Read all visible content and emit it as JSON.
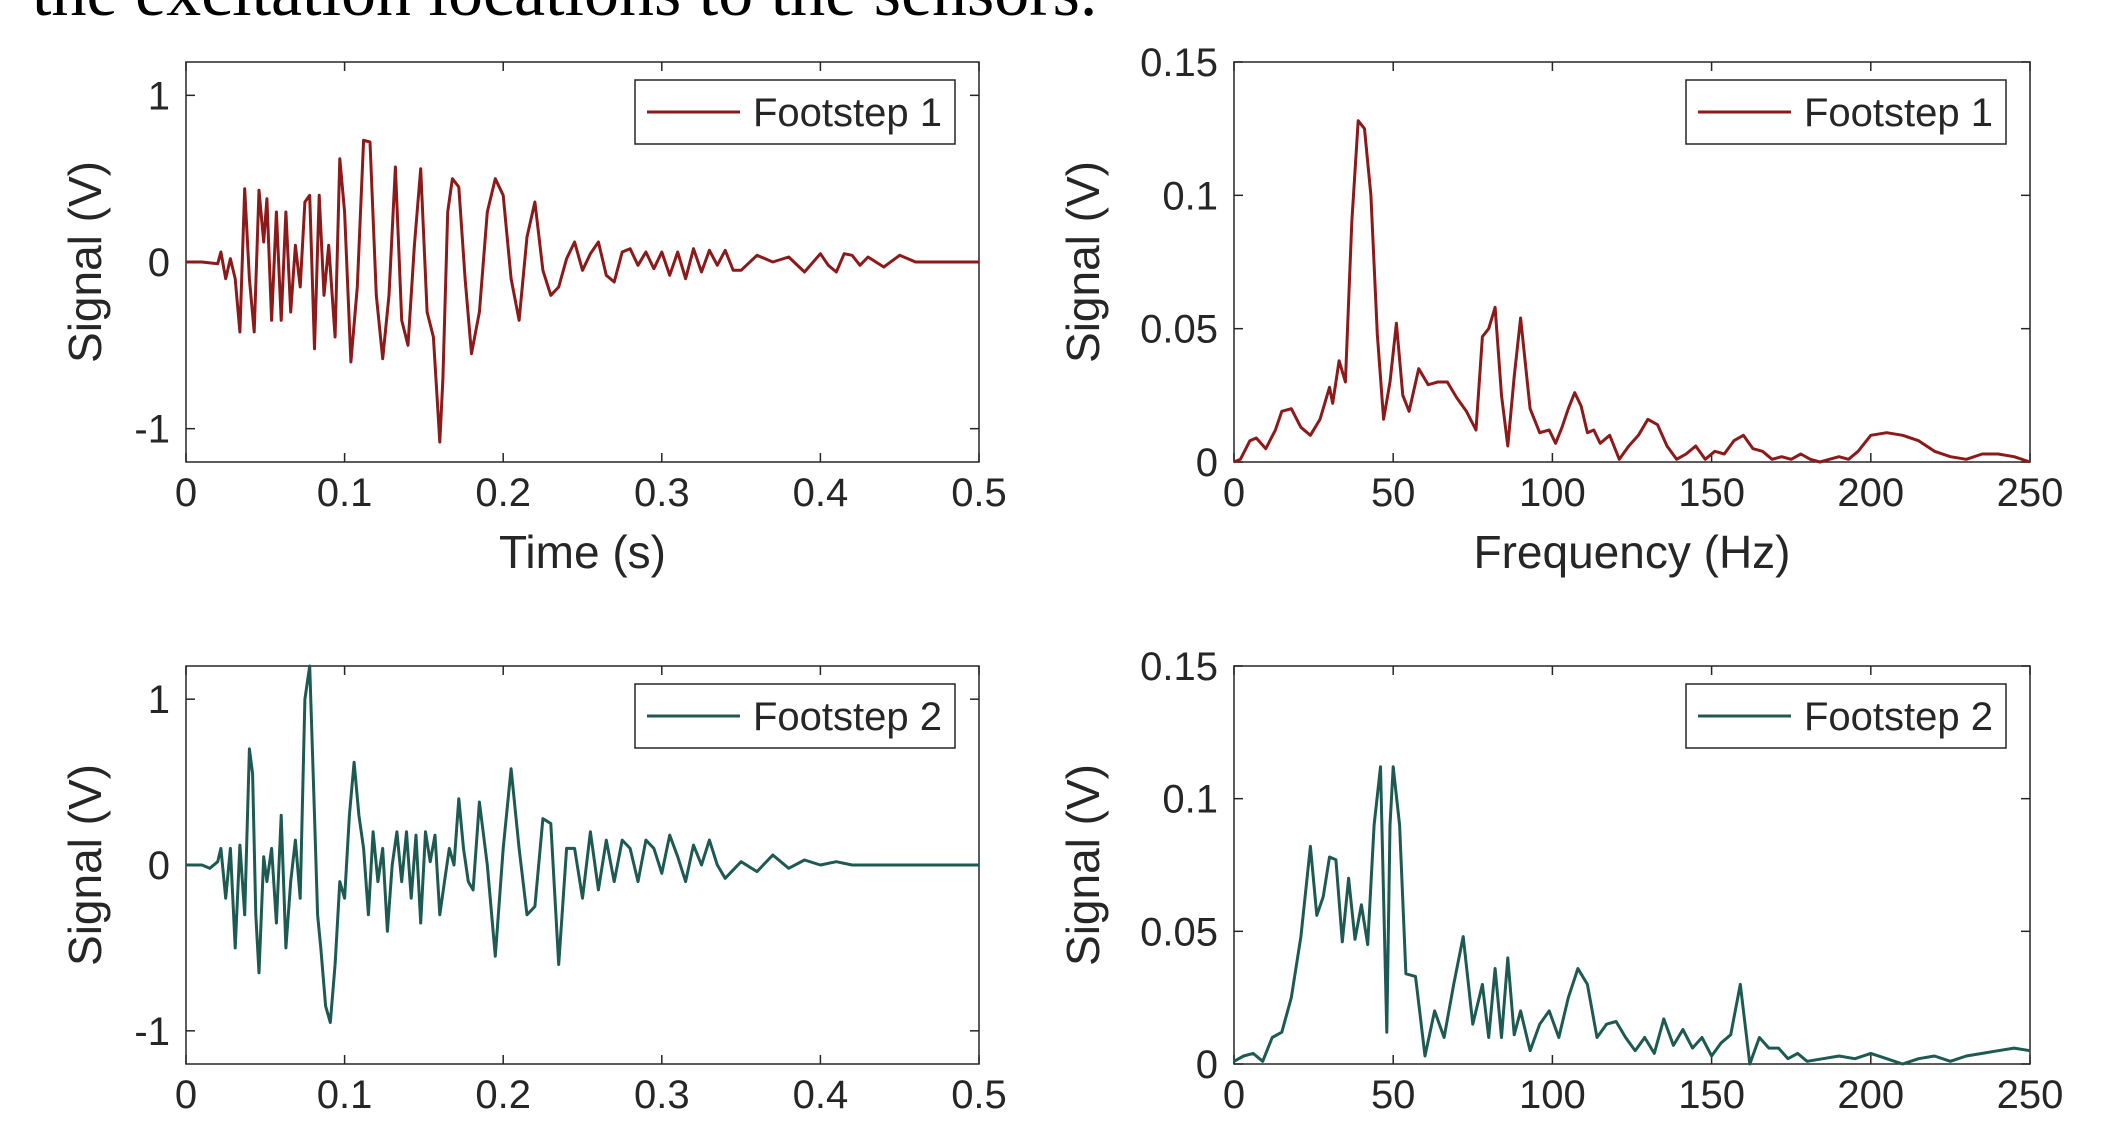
{
  "caption": "the excitation locations to the sensors.",
  "colors": {
    "footstep1": "#8c1a1a",
    "footstep2": "#1d5a52",
    "axis": "#262626"
  },
  "chart_data": [
    {
      "type": "line",
      "xlabel": "Time (s)",
      "ylabel": "Signal (V)",
      "xlim": [
        0,
        0.5
      ],
      "ylim": [
        -1.2,
        1.2
      ],
      "xticks": [
        "0",
        "0.1",
        "0.2",
        "0.3",
        "0.4",
        "0.5"
      ],
      "yticks": [
        "-1",
        "0",
        "1"
      ],
      "xtick_values": [
        0,
        0.1,
        0.2,
        0.3,
        0.4,
        0.5
      ],
      "ytick_values": [
        -1,
        0,
        1
      ],
      "legend_position": "top-right",
      "grid": false,
      "series": [
        {
          "name": "Footstep 1",
          "color": "#8c1a1a",
          "x": [
            0,
            0.01,
            0.02,
            0.022,
            0.025,
            0.028,
            0.031,
            0.034,
            0.037,
            0.04,
            0.043,
            0.046,
            0.049,
            0.051,
            0.054,
            0.057,
            0.06,
            0.063,
            0.066,
            0.069,
            0.072,
            0.075,
            0.078,
            0.081,
            0.084,
            0.087,
            0.09,
            0.094,
            0.097,
            0.1,
            0.104,
            0.108,
            0.112,
            0.116,
            0.12,
            0.124,
            0.128,
            0.132,
            0.136,
            0.14,
            0.144,
            0.148,
            0.152,
            0.156,
            0.16,
            0.162,
            0.165,
            0.168,
            0.172,
            0.176,
            0.18,
            0.185,
            0.19,
            0.195,
            0.2,
            0.205,
            0.21,
            0.215,
            0.22,
            0.225,
            0.23,
            0.235,
            0.24,
            0.245,
            0.25,
            0.255,
            0.26,
            0.265,
            0.27,
            0.275,
            0.28,
            0.285,
            0.29,
            0.295,
            0.3,
            0.305,
            0.31,
            0.315,
            0.32,
            0.325,
            0.33,
            0.335,
            0.34,
            0.345,
            0.35,
            0.36,
            0.37,
            0.38,
            0.39,
            0.4,
            0.405,
            0.41,
            0.415,
            0.42,
            0.425,
            0.43,
            0.44,
            0.45,
            0.46,
            0.47,
            0.48,
            0.5
          ],
          "y": [
            0,
            0,
            -0.01,
            0.06,
            -0.1,
            0.02,
            -0.1,
            -0.42,
            0.44,
            -0.1,
            -0.42,
            0.43,
            0.12,
            0.38,
            -0.35,
            0.3,
            -0.35,
            0.3,
            -0.3,
            0.1,
            -0.15,
            0.36,
            0.4,
            -0.52,
            0.4,
            -0.2,
            0.1,
            -0.45,
            0.62,
            0.3,
            -0.6,
            -0.15,
            0.73,
            0.72,
            -0.2,
            -0.58,
            -0.2,
            0.57,
            -0.35,
            -0.5,
            0.1,
            0.56,
            -0.3,
            -0.45,
            -1.08,
            -0.7,
            0.3,
            0.5,
            0.45,
            -0.1,
            -0.55,
            -0.3,
            0.3,
            0.5,
            0.4,
            -0.1,
            -0.35,
            0.15,
            0.36,
            -0.05,
            -0.2,
            -0.15,
            0.02,
            0.12,
            -0.05,
            0.05,
            0.12,
            -0.08,
            -0.12,
            0.06,
            0.08,
            -0.02,
            0.06,
            -0.04,
            0.06,
            -0.08,
            0.06,
            -0.1,
            0.08,
            -0.06,
            0.07,
            -0.02,
            0.07,
            -0.05,
            -0.05,
            0.04,
            0,
            0.03,
            -0.06,
            0.05,
            -0.02,
            -0.06,
            0.05,
            0.04,
            -0.02,
            0.03,
            -0.03,
            0.04,
            0,
            0,
            0,
            0
          ]
        }
      ]
    },
    {
      "type": "line",
      "xlabel": "Frequency (Hz)",
      "ylabel": "Signal (V)",
      "xlim": [
        0,
        250
      ],
      "ylim": [
        0,
        0.15
      ],
      "xticks": [
        "0",
        "50",
        "100",
        "150",
        "200",
        "250"
      ],
      "yticks": [
        "0",
        "0.05",
        "0.1",
        "0.15"
      ],
      "xtick_values": [
        0,
        50,
        100,
        150,
        200,
        250
      ],
      "ytick_values": [
        0,
        0.05,
        0.1,
        0.15
      ],
      "legend_position": "top-right",
      "grid": false,
      "series": [
        {
          "name": "Footstep 1",
          "color": "#8c1a1a",
          "x": [
            0,
            2,
            5,
            7,
            10,
            13,
            15,
            18,
            21,
            24,
            27,
            30,
            31,
            33,
            35,
            37,
            39,
            41,
            43,
            45,
            47,
            49,
            51,
            53,
            55,
            58,
            61,
            64,
            67,
            70,
            73,
            76,
            78,
            80,
            82,
            84,
            86,
            88,
            90,
            93,
            96,
            99,
            101,
            103,
            105,
            107,
            109,
            111,
            113,
            115,
            118,
            121,
            124,
            127,
            130,
            133,
            136,
            139,
            142,
            145,
            148,
            151,
            154,
            157,
            160,
            163,
            166,
            169,
            172,
            175,
            178,
            181,
            184,
            187,
            190,
            193,
            196,
            200,
            205,
            210,
            215,
            220,
            225,
            230,
            235,
            240,
            245,
            250
          ],
          "y": [
            0,
            0.001,
            0.008,
            0.009,
            0.005,
            0.012,
            0.019,
            0.02,
            0.013,
            0.01,
            0.016,
            0.028,
            0.022,
            0.038,
            0.03,
            0.09,
            0.128,
            0.125,
            0.1,
            0.048,
            0.016,
            0.03,
            0.052,
            0.025,
            0.019,
            0.035,
            0.029,
            0.03,
            0.03,
            0.024,
            0.019,
            0.012,
            0.047,
            0.05,
            0.058,
            0.025,
            0.006,
            0.032,
            0.054,
            0.02,
            0.011,
            0.012,
            0.007,
            0.013,
            0.02,
            0.026,
            0.021,
            0.011,
            0.012,
            0.007,
            0.01,
            0.001,
            0.006,
            0.01,
            0.016,
            0.014,
            0.006,
            0.001,
            0.003,
            0.006,
            0.001,
            0.004,
            0.003,
            0.008,
            0.01,
            0.005,
            0.004,
            0.001,
            0.002,
            0.001,
            0.003,
            0.001,
            0.0,
            0.001,
            0.002,
            0.001,
            0.004,
            0.01,
            0.011,
            0.01,
            0.008,
            0.004,
            0.002,
            0.001,
            0.003,
            0.003,
            0.002,
            0.0
          ]
        }
      ]
    },
    {
      "type": "line",
      "xlabel": "",
      "ylabel": "Signal (V)",
      "xlim": [
        0,
        0.5
      ],
      "ylim": [
        -1.2,
        1.2
      ],
      "xticks": [
        "0",
        "0.1",
        "0.2",
        "0.3",
        "0.4",
        "0.5"
      ],
      "yticks": [
        "-1",
        "0",
        "1"
      ],
      "xtick_values": [
        0,
        0.1,
        0.2,
        0.3,
        0.4,
        0.5
      ],
      "ytick_values": [
        -1,
        0,
        1
      ],
      "legend_position": "top-right",
      "grid": false,
      "series": [
        {
          "name": "Footstep 2",
          "color": "#1d5a52",
          "x": [
            0,
            0.01,
            0.015,
            0.02,
            0.022,
            0.025,
            0.028,
            0.031,
            0.034,
            0.037,
            0.04,
            0.042,
            0.044,
            0.046,
            0.049,
            0.051,
            0.054,
            0.057,
            0.06,
            0.063,
            0.066,
            0.069,
            0.072,
            0.075,
            0.078,
            0.081,
            0.083,
            0.085,
            0.088,
            0.091,
            0.094,
            0.097,
            0.1,
            0.103,
            0.106,
            0.109,
            0.112,
            0.115,
            0.118,
            0.121,
            0.124,
            0.127,
            0.13,
            0.133,
            0.136,
            0.139,
            0.142,
            0.145,
            0.148,
            0.151,
            0.154,
            0.157,
            0.16,
            0.163,
            0.166,
            0.169,
            0.172,
            0.175,
            0.178,
            0.181,
            0.185,
            0.19,
            0.195,
            0.2,
            0.205,
            0.21,
            0.215,
            0.22,
            0.225,
            0.23,
            0.235,
            0.24,
            0.245,
            0.25,
            0.255,
            0.26,
            0.265,
            0.27,
            0.275,
            0.28,
            0.285,
            0.29,
            0.295,
            0.3,
            0.305,
            0.31,
            0.315,
            0.32,
            0.325,
            0.33,
            0.335,
            0.34,
            0.35,
            0.36,
            0.37,
            0.38,
            0.39,
            0.4,
            0.41,
            0.42,
            0.43,
            0.5
          ],
          "y": [
            0,
            0,
            -0.02,
            0.02,
            0.1,
            -0.2,
            0.1,
            -0.5,
            0.12,
            -0.3,
            0.7,
            0.55,
            -0.3,
            -0.65,
            0.05,
            -0.1,
            0.1,
            -0.35,
            0.3,
            -0.5,
            -0.1,
            0.15,
            -0.2,
            1.0,
            1.2,
            0.3,
            -0.3,
            -0.5,
            -0.85,
            -0.95,
            -0.6,
            -0.1,
            -0.2,
            0.3,
            0.62,
            0.3,
            0.1,
            -0.3,
            0.2,
            -0.1,
            0.1,
            -0.4,
            0.0,
            0.2,
            -0.1,
            0.2,
            -0.2,
            0.18,
            -0.35,
            0.2,
            0.02,
            0.18,
            -0.3,
            -0.1,
            0.1,
            0.0,
            0.4,
            0.1,
            -0.1,
            -0.15,
            0.38,
            0.0,
            -0.55,
            0.1,
            0.58,
            0.1,
            -0.3,
            -0.25,
            0.28,
            0.25,
            -0.6,
            0.1,
            0.1,
            -0.2,
            0.2,
            -0.15,
            0.15,
            -0.1,
            0.15,
            0.1,
            -0.1,
            0.15,
            0.1,
            -0.05,
            0.18,
            0.05,
            -0.1,
            0.12,
            0.0,
            0.15,
            0.0,
            -0.08,
            0.02,
            -0.04,
            0.06,
            -0.02,
            0.03,
            0.0,
            0.02,
            0.0,
            0.0,
            0.0
          ]
        }
      ]
    },
    {
      "type": "line",
      "xlabel": "",
      "ylabel": "Signal (V)",
      "xlim": [
        0,
        250
      ],
      "ylim": [
        0,
        0.15
      ],
      "xticks": [
        "0",
        "50",
        "100",
        "150",
        "200",
        "250"
      ],
      "yticks": [
        "0",
        "0.05",
        "0.1",
        "0.15"
      ],
      "xtick_values": [
        0,
        50,
        100,
        150,
        200,
        250
      ],
      "ytick_values": [
        0,
        0.05,
        0.1,
        0.15
      ],
      "legend_position": "top-right",
      "grid": false,
      "series": [
        {
          "name": "Footstep 2",
          "color": "#1d5a52",
          "x": [
            0,
            3,
            6,
            9,
            12,
            15,
            18,
            21,
            24,
            26,
            28,
            30,
            32,
            34,
            36,
            38,
            40,
            42,
            44,
            46,
            48,
            49,
            50,
            52,
            54,
            57,
            60,
            63,
            66,
            69,
            72,
            75,
            78,
            80,
            82,
            84,
            86,
            88,
            90,
            93,
            96,
            99,
            102,
            105,
            108,
            111,
            114,
            117,
            120,
            123,
            126,
            129,
            132,
            135,
            138,
            141,
            144,
            147,
            150,
            153,
            156,
            159,
            162,
            165,
            168,
            171,
            174,
            177,
            180,
            185,
            190,
            195,
            200,
            205,
            210,
            215,
            220,
            225,
            230,
            235,
            240,
            245,
            250
          ],
          "y": [
            0.001,
            0.003,
            0.004,
            0.001,
            0.01,
            0.012,
            0.025,
            0.048,
            0.082,
            0.056,
            0.063,
            0.078,
            0.077,
            0.046,
            0.07,
            0.047,
            0.06,
            0.045,
            0.09,
            0.112,
            0.012,
            0.09,
            0.112,
            0.09,
            0.034,
            0.033,
            0.003,
            0.02,
            0.01,
            0.03,
            0.048,
            0.015,
            0.03,
            0.01,
            0.036,
            0.01,
            0.04,
            0.011,
            0.02,
            0.005,
            0.015,
            0.02,
            0.01,
            0.025,
            0.036,
            0.03,
            0.01,
            0.015,
            0.016,
            0.01,
            0.005,
            0.01,
            0.004,
            0.017,
            0.007,
            0.013,
            0.006,
            0.01,
            0.003,
            0.008,
            0.011,
            0.03,
            0.0,
            0.01,
            0.006,
            0.006,
            0.002,
            0.004,
            0.001,
            0.002,
            0.003,
            0.002,
            0.004,
            0.002,
            0.0,
            0.002,
            0.003,
            0.001,
            0.003,
            0.004,
            0.005,
            0.006,
            0.005
          ]
        }
      ]
    }
  ]
}
